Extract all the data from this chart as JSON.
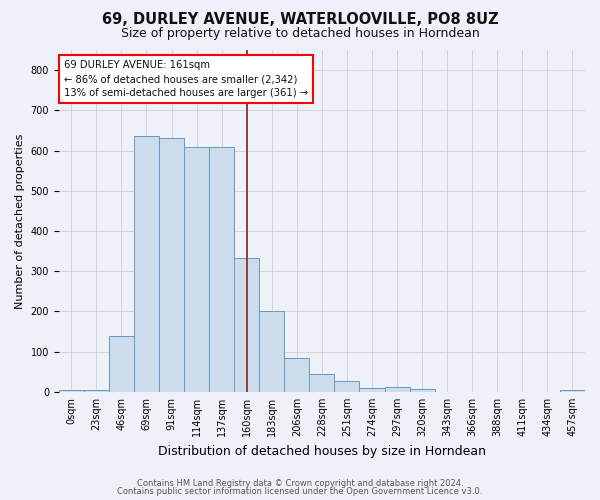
{
  "title": "69, DURLEY AVENUE, WATERLOOVILLE, PO8 8UZ",
  "subtitle": "Size of property relative to detached houses in Horndean",
  "xlabel": "Distribution of detached houses by size in Horndean",
  "ylabel": "Number of detached properties",
  "footer1": "Contains HM Land Registry data © Crown copyright and database right 2024.",
  "footer2": "Contains public sector information licensed under the Open Government Licence v3.0.",
  "annotation_line1": "69 DURLEY AVENUE: 161sqm",
  "annotation_line2": "← 86% of detached houses are smaller (2,342)",
  "annotation_line3": "13% of semi-detached houses are larger (361) →",
  "bar_values": [
    5,
    5,
    140,
    635,
    630,
    610,
    610,
    333,
    200,
    85,
    45,
    27,
    10,
    12,
    8,
    0,
    0,
    0,
    0,
    0,
    5
  ],
  "bin_labels": [
    "0sqm",
    "23sqm",
    "46sqm",
    "69sqm",
    "91sqm",
    "114sqm",
    "137sqm",
    "160sqm",
    "183sqm",
    "206sqm",
    "228sqm",
    "251sqm",
    "274sqm",
    "297sqm",
    "320sqm",
    "343sqm",
    "366sqm",
    "388sqm",
    "411sqm",
    "434sqm",
    "457sqm"
  ],
  "bar_color": "#cddcec",
  "bar_edge_color": "#6699bb",
  "vline_x": 7.0,
  "vline_color": "#882222",
  "background_color": "#eef2f8",
  "grid_color": "#c8c8c8",
  "ylim": [
    0,
    850
  ],
  "xlim": [
    0,
    21
  ],
  "title_fontsize": 10.5,
  "subtitle_fontsize": 9,
  "ylabel_fontsize": 8,
  "xlabel_fontsize": 9,
  "tick_fontsize": 7,
  "footer_fontsize": 6
}
